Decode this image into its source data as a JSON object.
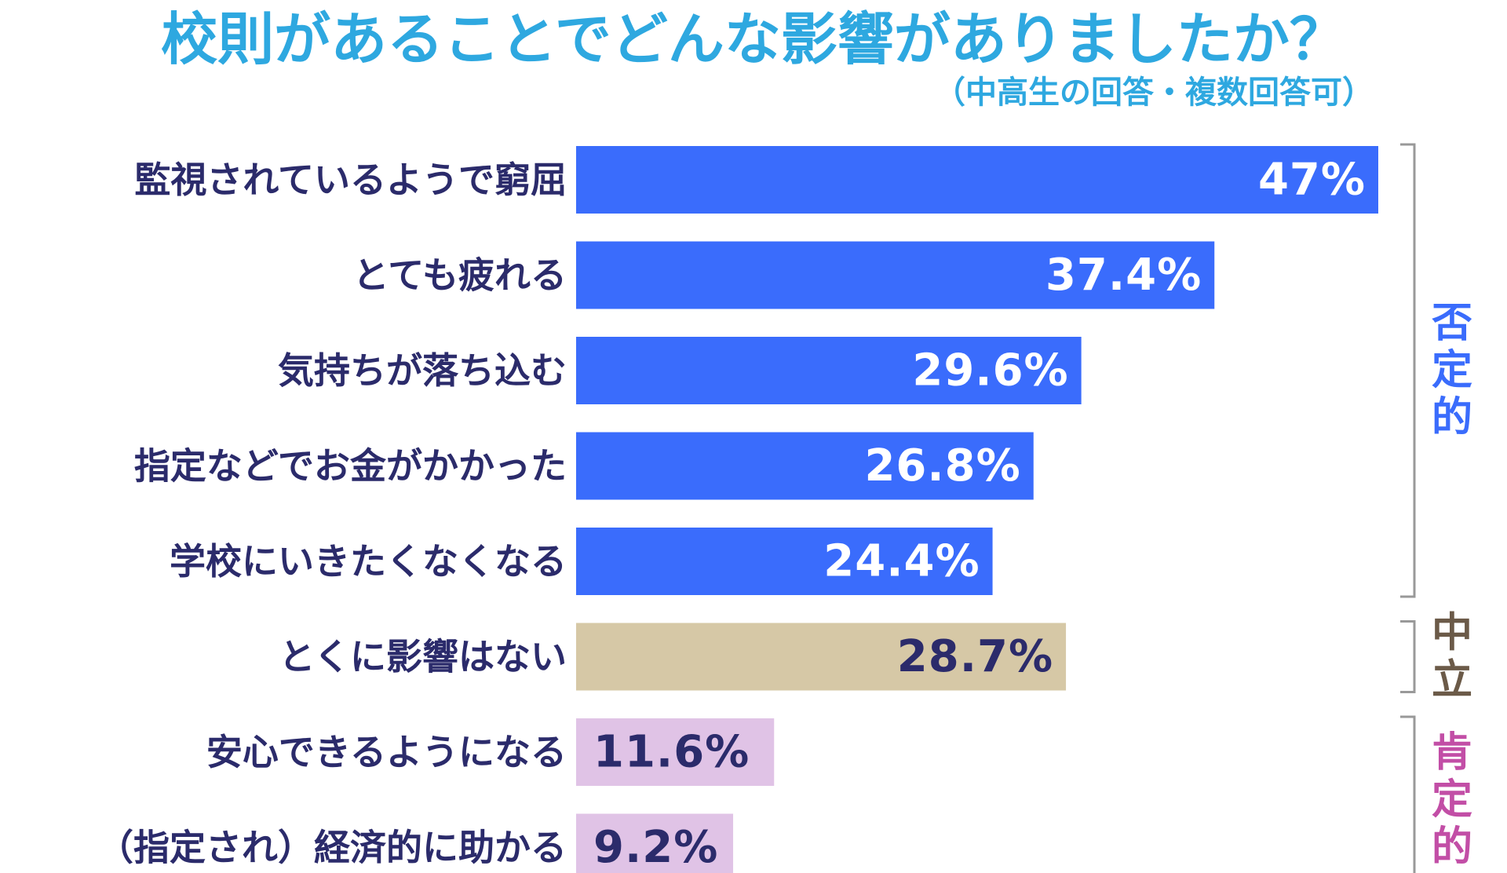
{
  "title": "校則があることでどんな影響がありましたか？",
  "subtitle": "（中高生の回答・複数回答可）",
  "colors": {
    "title": "#2ea8e0",
    "negative": "#3a6cfc",
    "neutral": "#d6c8a6",
    "positive": "#e0c3e6",
    "label_dark": "#2b2b6b",
    "label_light": "#ffffff",
    "neutral_group": "#6b5a48",
    "positive_group": "#c24ea6",
    "bracket": "#999999"
  },
  "chart_data": {
    "type": "bar",
    "orientation": "horizontal",
    "title": "校則があることでどんな影響がありましたか？",
    "subtitle": "（中高生の回答・複数回答可）",
    "categories": [
      "監視されているようで窮屈",
      "とても疲れる",
      "気持ちが落ち込む",
      "指定などでお金がかかった",
      "学校にいきたくなくなる",
      "とくに影響はない",
      "安心できるようになる",
      "（指定され）経済的に助かる"
    ],
    "values": [
      47,
      37.4,
      29.6,
      26.8,
      24.4,
      28.7,
      11.6,
      9.2
    ],
    "value_labels": [
      "47%",
      "37.4%",
      "29.6%",
      "26.8%",
      "24.4%",
      "28.7%",
      "11.6%",
      "9.2%"
    ],
    "groups": [
      "negative",
      "negative",
      "negative",
      "negative",
      "negative",
      "neutral",
      "positive",
      "positive"
    ],
    "group_labels": [
      {
        "name": "否定的",
        "group": "negative"
      },
      {
        "name": "中立",
        "group": "neutral"
      },
      {
        "name": "肯定的",
        "group": "positive"
      }
    ],
    "xlim": [
      0,
      47
    ],
    "grid": false,
    "legend": "none"
  }
}
